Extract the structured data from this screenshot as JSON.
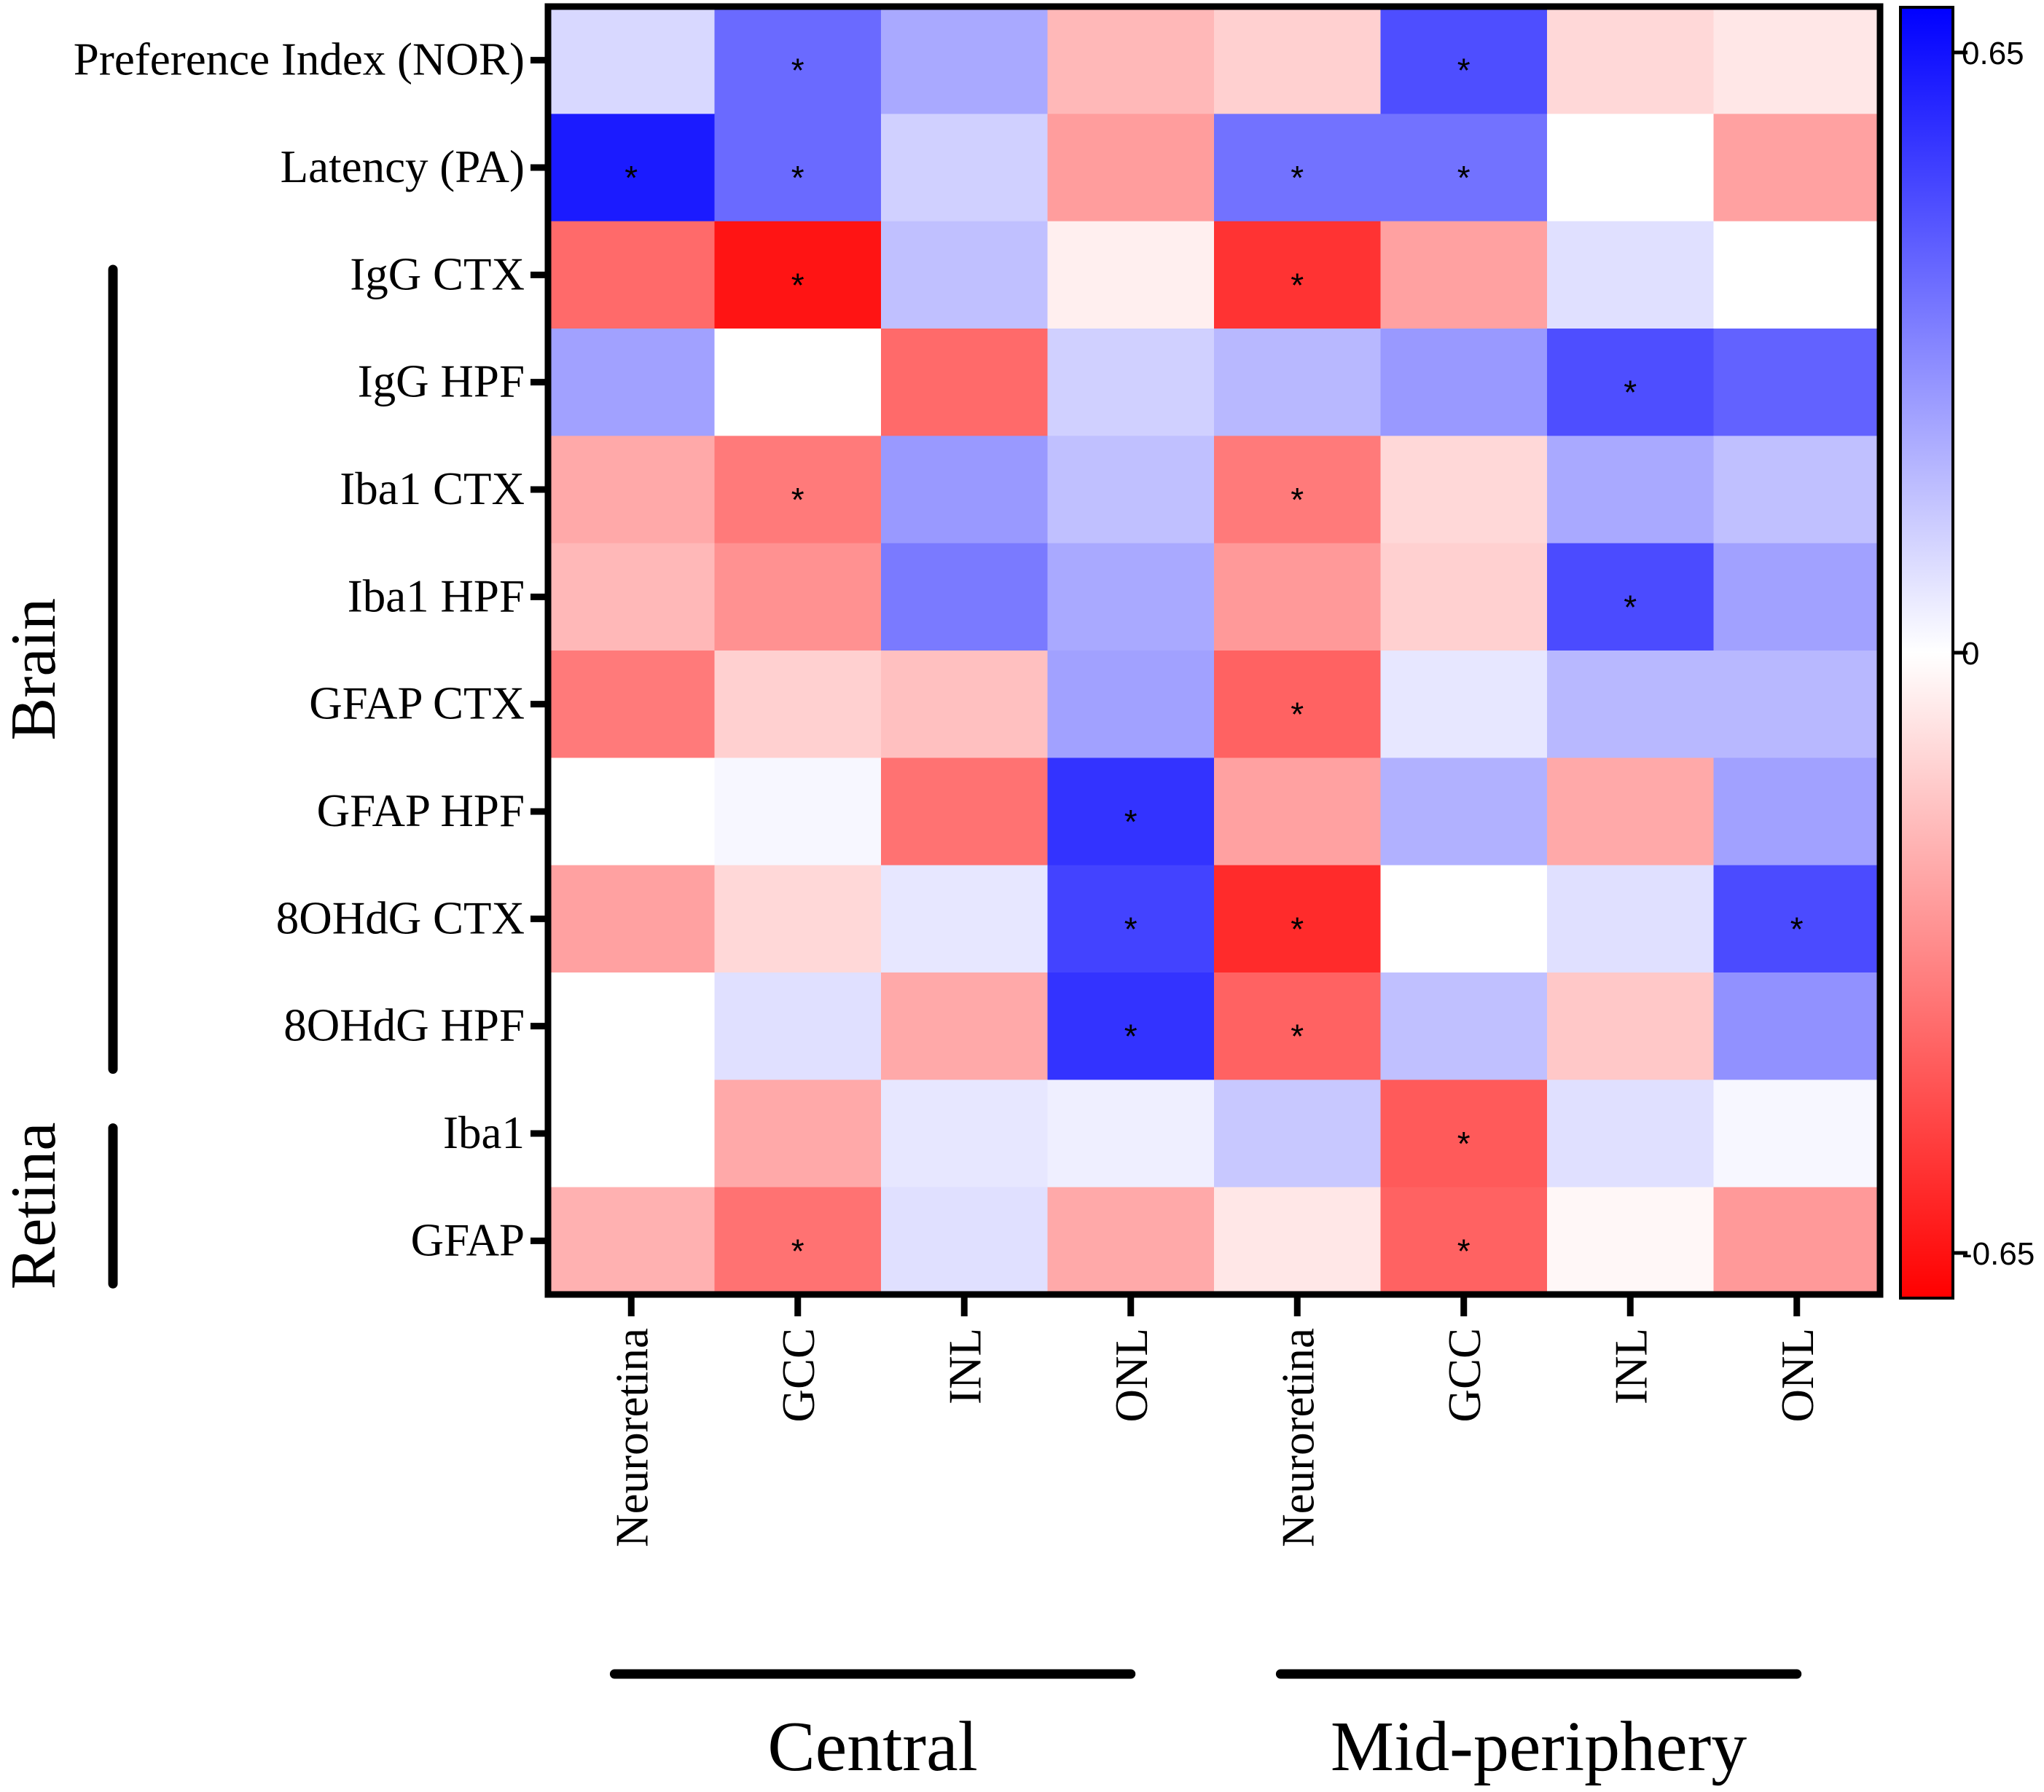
{
  "chart_data": {
    "type": "heatmap",
    "rows": [
      "Preference Index (NOR)",
      "Latency (PA)",
      "IgG CTX",
      "IgG HPF",
      "Iba1 CTX",
      "Iba1 HPF",
      "GFAP CTX",
      "GFAP HPF",
      "8OHdG CTX",
      "8OHdG HPF",
      "Iba1",
      "GFAP"
    ],
    "columns": [
      "Neuroretina",
      "GCC",
      "INL",
      "ONL",
      "Neuroretina",
      "GCC",
      "INL",
      "ONL"
    ],
    "column_groups": [
      {
        "label": "Central",
        "columns": [
          0,
          1,
          2,
          3
        ]
      },
      {
        "label": "Mid-periphery",
        "columns": [
          4,
          5,
          6,
          7
        ]
      }
    ],
    "row_groups": [
      {
        "label": "Brain",
        "rows": [
          2,
          3,
          4,
          5,
          6,
          7,
          8,
          9
        ]
      },
      {
        "label": "Retina",
        "rows": [
          10,
          11
        ]
      }
    ],
    "values": [
      [
        0.1,
        0.38,
        0.22,
        -0.18,
        -0.12,
        0.45,
        -0.1,
        -0.06
      ],
      [
        0.58,
        0.38,
        0.12,
        -0.25,
        0.36,
        0.36,
        0.0,
        -0.24
      ],
      [
        -0.38,
        -0.6,
        0.16,
        -0.04,
        -0.52,
        -0.24,
        0.08,
        0.0
      ],
      [
        0.24,
        0.0,
        -0.38,
        0.12,
        0.18,
        0.26,
        0.45,
        0.4
      ],
      [
        -0.22,
        -0.34,
        0.26,
        0.16,
        -0.34,
        -0.1,
        0.22,
        0.16
      ],
      [
        -0.18,
        -0.28,
        0.34,
        0.22,
        -0.26,
        -0.12,
        0.46,
        0.24
      ],
      [
        -0.34,
        -0.12,
        -0.16,
        0.24,
        -0.4,
        0.06,
        0.18,
        0.18
      ],
      [
        0.0,
        0.02,
        -0.36,
        0.52,
        -0.24,
        0.2,
        -0.22,
        0.24
      ],
      [
        -0.24,
        -0.1,
        0.06,
        0.48,
        -0.54,
        0.0,
        0.08,
        0.46
      ],
      [
        0.0,
        0.08,
        -0.22,
        0.52,
        -0.4,
        0.16,
        -0.14,
        0.28
      ],
      [
        0.0,
        -0.22,
        0.06,
        0.04,
        0.14,
        -0.42,
        0.08,
        0.02
      ],
      [
        -0.2,
        -0.36,
        0.08,
        -0.22,
        -0.06,
        -0.4,
        -0.02,
        -0.26
      ]
    ],
    "significance_marker": "*",
    "significant": [
      [
        0,
        1
      ],
      [
        0,
        5
      ],
      [
        1,
        0
      ],
      [
        1,
        1
      ],
      [
        1,
        4
      ],
      [
        1,
        5
      ],
      [
        2,
        1
      ],
      [
        2,
        4
      ],
      [
        3,
        6
      ],
      [
        4,
        1
      ],
      [
        4,
        4
      ],
      [
        5,
        6
      ],
      [
        6,
        4
      ],
      [
        7,
        3
      ],
      [
        8,
        3
      ],
      [
        8,
        4
      ],
      [
        8,
        7
      ],
      [
        9,
        3
      ],
      [
        9,
        4
      ],
      [
        10,
        5
      ],
      [
        11,
        1
      ],
      [
        11,
        5
      ]
    ],
    "colorbar": {
      "min": -0.65,
      "max": 0.65,
      "tick_values": [
        0.65,
        0,
        -0.65
      ],
      "tick_labels": [
        "0.65",
        "0",
        "-0.65"
      ],
      "colors": {
        "min": "#ff0000",
        "mid": "#ffffff",
        "max": "#0000ff"
      }
    }
  }
}
